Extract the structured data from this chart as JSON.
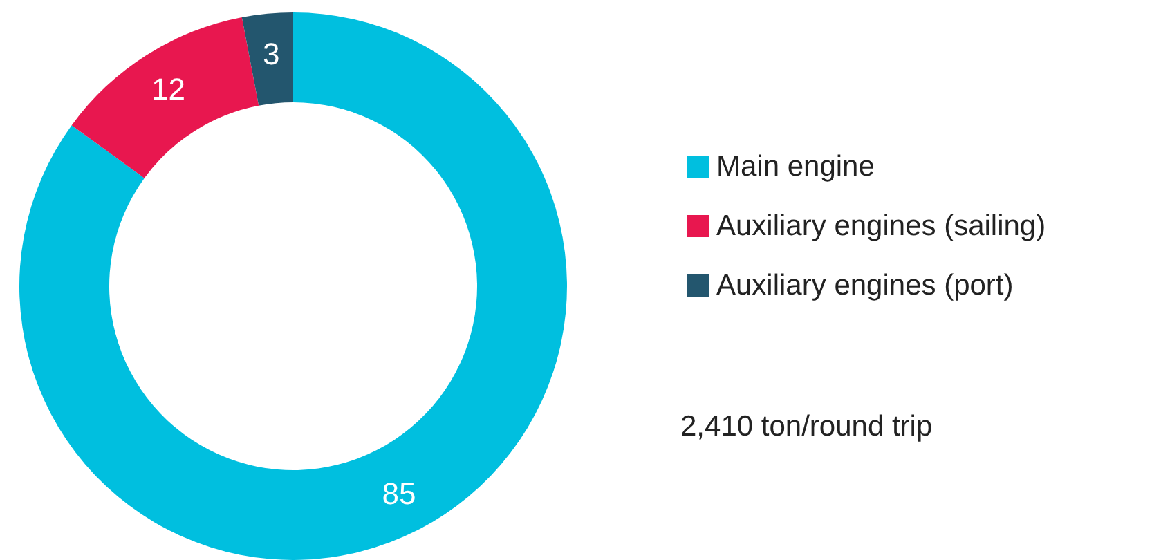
{
  "chart_data": {
    "type": "donut",
    "categories": [
      "Main engine",
      "Auxiliary engines (sailing)",
      "Auxiliary engines (port)"
    ],
    "values": [
      85,
      12,
      3
    ],
    "colors": [
      "#00bfdf",
      "#e8174f",
      "#23566e"
    ],
    "data_labels": true,
    "legend": "right",
    "annotations": [
      "2,410 ton/round trip"
    ]
  }
}
